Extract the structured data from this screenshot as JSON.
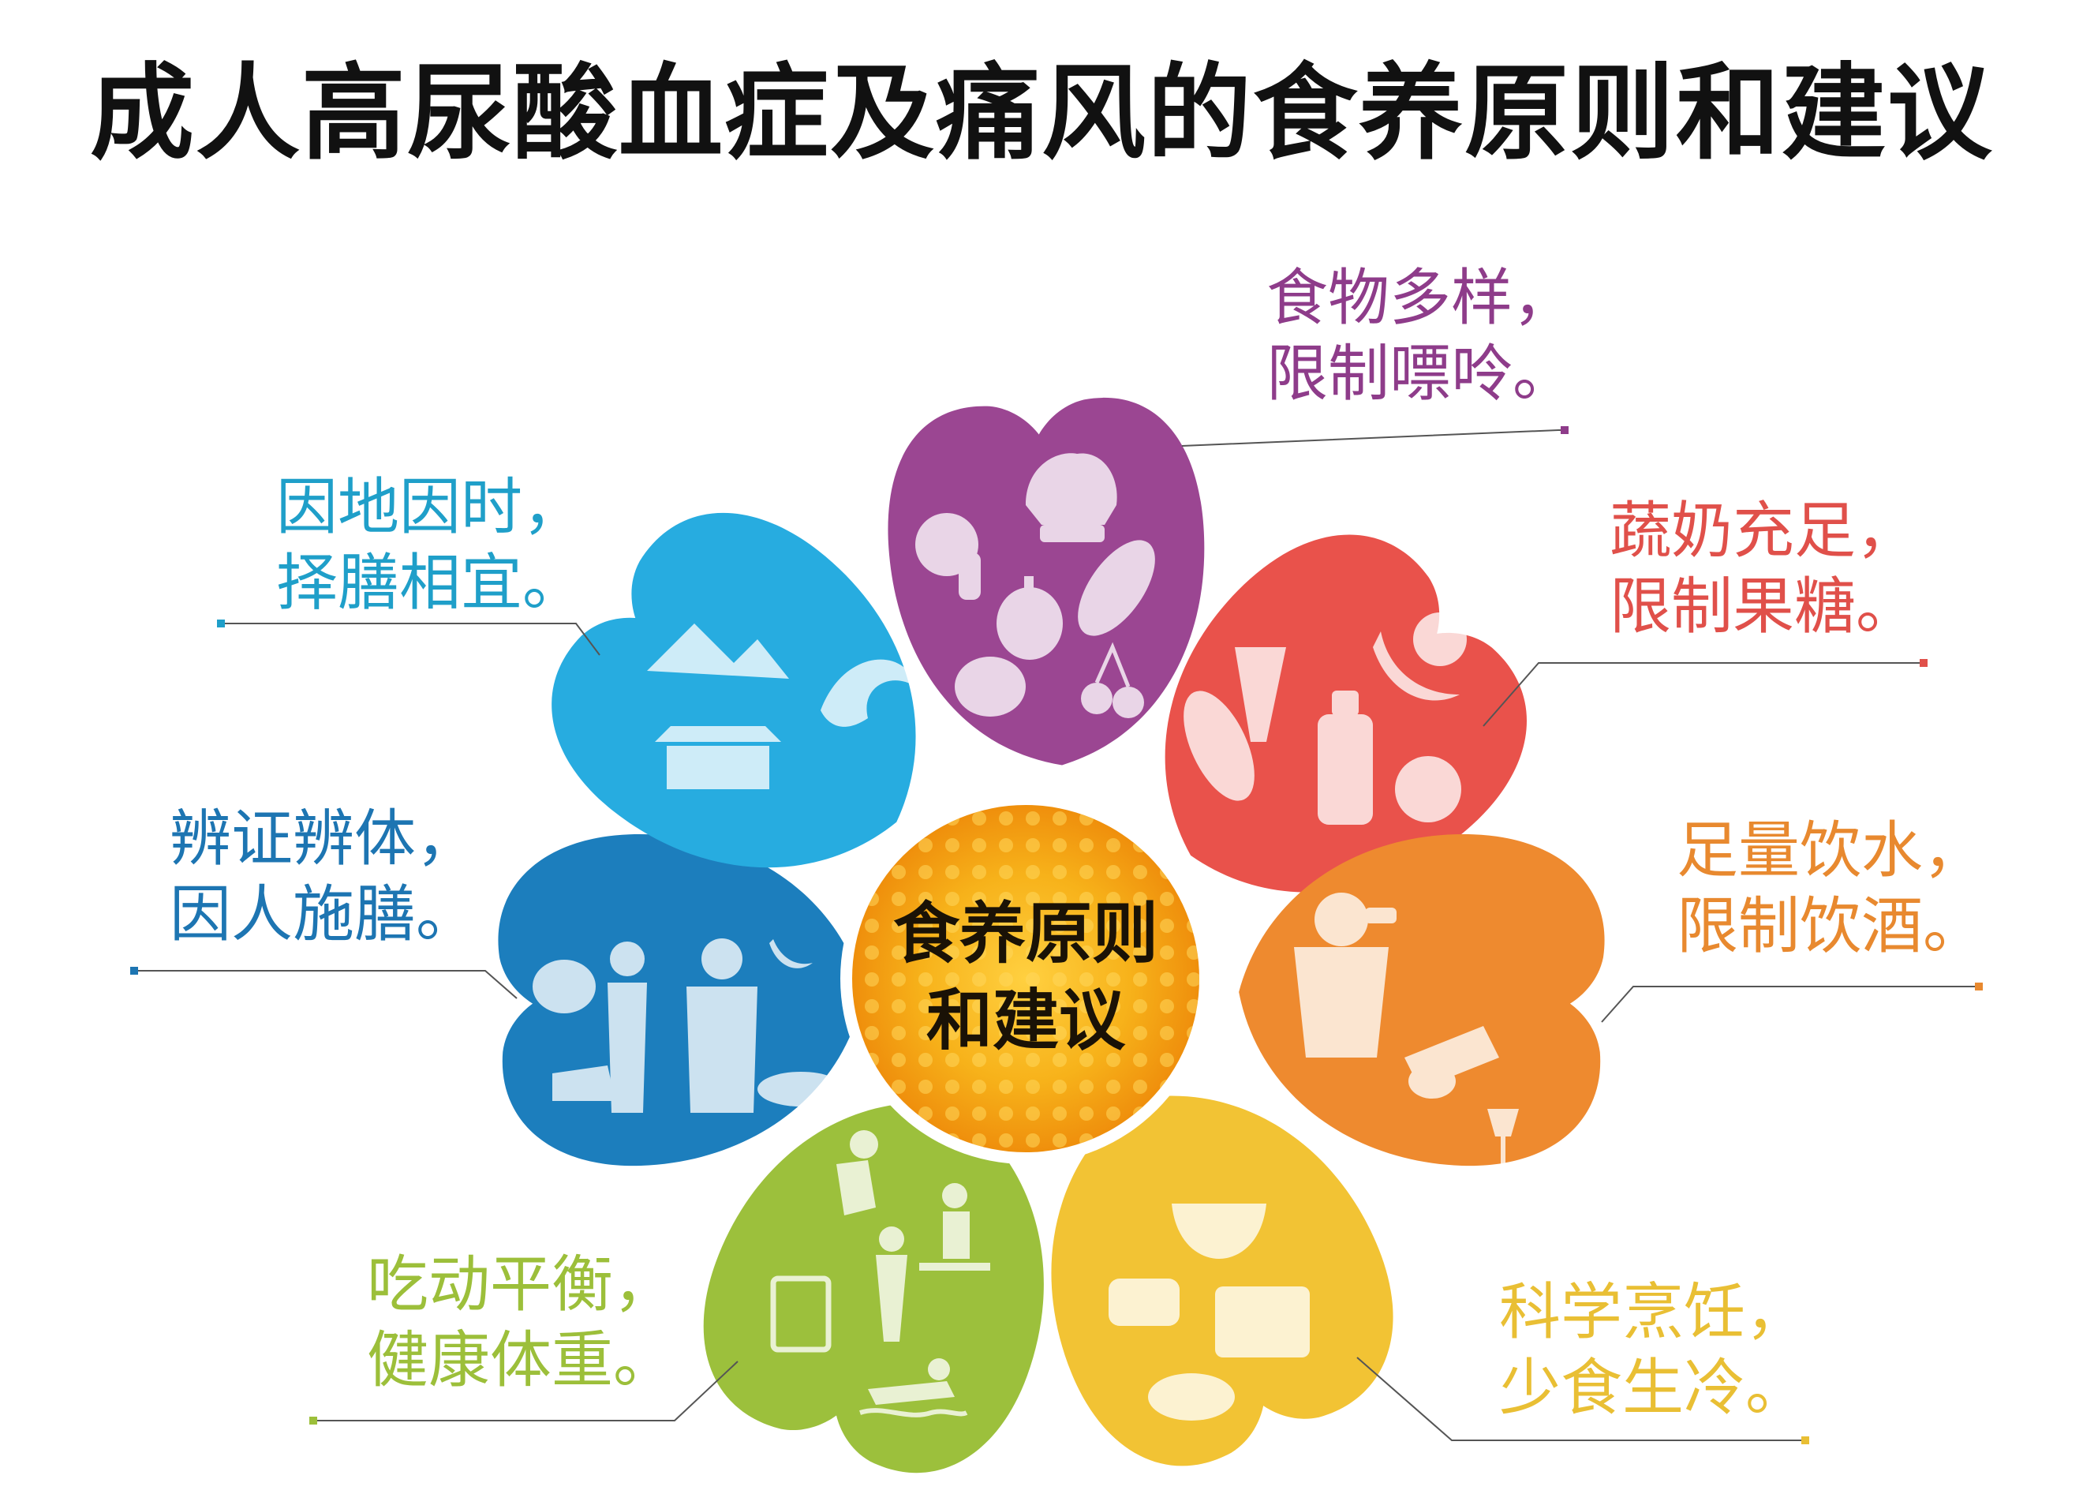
{
  "title": "成人高尿酸血症及痛风的食养原则和建议",
  "center": {
    "line1": "食养原则",
    "line2": "和建议"
  },
  "principles": [
    {
      "line1": "食物多样，",
      "line2": "限制嘌呤。",
      "color": "#8e3c8a"
    },
    {
      "line1": "蔬奶充足，",
      "line2": "限制果糖。",
      "color": "#e0504a"
    },
    {
      "line1": "足量饮水，",
      "line2": "限制饮酒。",
      "color": "#e8892f"
    },
    {
      "line1": "科学烹饪，",
      "line2": "少食生冷。",
      "color": "#e9bf34"
    },
    {
      "line1": "吃动平衡，",
      "line2": "健康体重。",
      "color": "#9cbf3a"
    },
    {
      "line1": "辨证辨体，",
      "line2": "因人施膳。",
      "color": "#1d75b2"
    },
    {
      "line1": "因地因时，",
      "line2": "择膳相宜。",
      "color": "#1f9fc9"
    }
  ],
  "icons": {
    "petal_purple": [
      "seashell-icon",
      "mushroom-icon",
      "eggplant-icon",
      "garlic-icon",
      "egg-icon",
      "cherry-icon"
    ],
    "petal_red": [
      "carrot-icon",
      "banana-icon",
      "orange-icon",
      "corn-icon",
      "milk-bottle-icon",
      "tomato-icon"
    ],
    "petal_orange": [
      "man-drinking-icon",
      "hand-pouring-icon",
      "wine-glass-icon"
    ],
    "petal_yellow": [
      "steaming-bowl-icon",
      "teacup-icon",
      "pot-icon",
      "roast-chicken-icon"
    ],
    "petal_green": [
      "runner-icon",
      "treadmill-icon",
      "scale-icon",
      "stretching-person-icon",
      "swimmer-icon"
    ],
    "petal_blue": [
      "pumpkin-icon",
      "slim-body-icon",
      "heavy-body-icon",
      "banana-icon",
      "fish-icon",
      "shoe-icon"
    ],
    "petal_cyan": [
      "mountains-icon",
      "wave-icon",
      "temple-icon"
    ]
  },
  "colors": {
    "center_outer": "#f4a80f",
    "center_inner": "#f59a0b",
    "leader_line": "#555555",
    "title": "#111111"
  }
}
